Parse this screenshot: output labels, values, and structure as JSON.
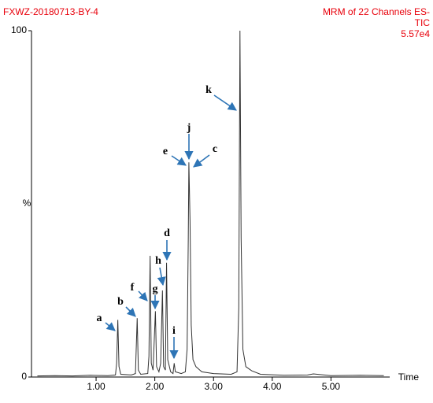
{
  "chart_data": {
    "type": "line",
    "title": "FXWZ-20180713-BY-4",
    "subtitle_lines": [
      "MRM of 22 Channels ES-",
      "TIC",
      "5.57e4"
    ],
    "title_color": "#e8000b",
    "x_label": "Time",
    "y_label": "%",
    "xlim": [
      -0.1,
      6.0
    ],
    "ylim": [
      0,
      100
    ],
    "xticks": [
      {
        "value": 1,
        "label": "1.00"
      },
      {
        "value": 2,
        "label": "2.00"
      },
      {
        "value": 3,
        "label": "3.00"
      },
      {
        "value": 4,
        "label": "4.00"
      },
      {
        "value": 5,
        "label": "5.00"
      }
    ],
    "yticks": [
      0,
      100
    ],
    "x": [
      0,
      0.3,
      0.6,
      0.9,
      1.2,
      1.33,
      1.35,
      1.37,
      1.39,
      1.42,
      1.6,
      1.67,
      1.7,
      1.72,
      1.76,
      1.88,
      1.9,
      1.92,
      1.94,
      1.97,
      2.01,
      2.03,
      2.07,
      2.1,
      2.13,
      2.15,
      2.18,
      2.2,
      2.22,
      2.27,
      2.31,
      2.33,
      2.35,
      2.45,
      2.52,
      2.55,
      2.57,
      2.58,
      2.6,
      2.62,
      2.65,
      2.7,
      2.8,
      3.0,
      3.3,
      3.4,
      3.43,
      3.45,
      3.47,
      3.5,
      3.55,
      3.65,
      3.8,
      4.2,
      4.6,
      4.7,
      5.0,
      5.5,
      5.9
    ],
    "series": [
      {
        "color": "#333333",
        "values": [
          0.3,
          0.4,
          0.3,
          0.5,
          0.4,
          0.6,
          4,
          16.5,
          3,
          0.8,
          0.6,
          1,
          17,
          2,
          0.8,
          1,
          6,
          35,
          4,
          2,
          19,
          3,
          1.5,
          4,
          25,
          3,
          2,
          33,
          5,
          1.5,
          1,
          4,
          1.5,
          1,
          1.5,
          8,
          40,
          62,
          45,
          15,
          5,
          3,
          1.5,
          1,
          0.8,
          1.5,
          20,
          100,
          40,
          8,
          3,
          1.8,
          0.8,
          0.5,
          0.6,
          0.9,
          0.4,
          0.5,
          0.4
        ]
      }
    ],
    "annotations": [
      "a",
      "b",
      "f",
      "g",
      "h",
      "d",
      "i",
      "e",
      "j",
      "c",
      "k"
    ],
    "annotation_color": "#2e75b6"
  }
}
